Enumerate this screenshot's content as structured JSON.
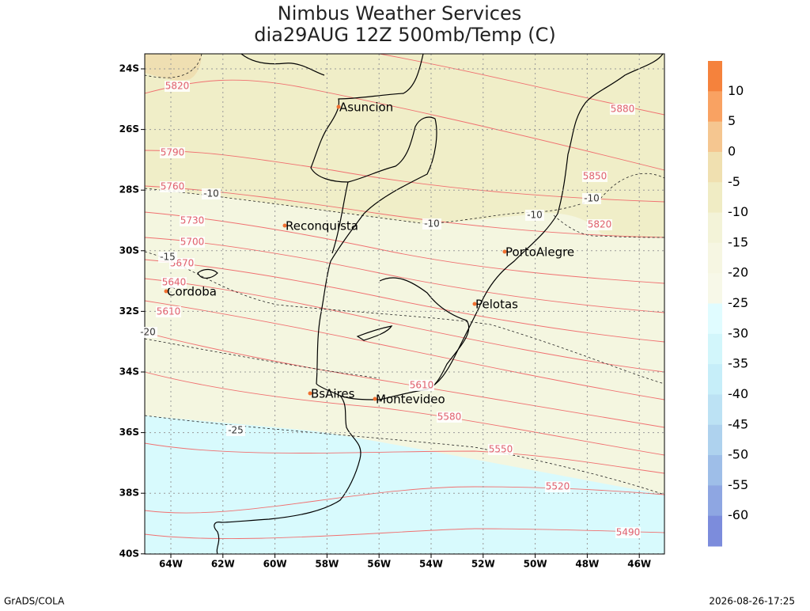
{
  "header": {
    "title": "Nimbus Weather Services",
    "subtitle": "dia29AUG 12Z 500mb/Temp (C)"
  },
  "map": {
    "lat_labels": [
      "24S",
      "26S",
      "28S",
      "30S",
      "32S",
      "34S",
      "36S",
      "38S",
      "40S"
    ],
    "lon_labels": [
      "64W",
      "62W",
      "60W",
      "58W",
      "56W",
      "54W",
      "52W",
      "50W",
      "48W",
      "46W"
    ],
    "cities": [
      "Asuncion",
      "Reconquista",
      "PortoAlegre",
      "Pelotas",
      "Cordoba",
      "BsAires",
      "Montevideo"
    ],
    "height_labels": [
      "5820",
      "5790",
      "5760",
      "5730",
      "5700",
      "5670",
      "5640",
      "5610",
      "5880",
      "5850",
      "5820",
      "5610",
      "5580",
      "5550",
      "5520",
      "5490"
    ],
    "temp_labels": [
      "-10",
      "-10",
      "-10",
      "-10",
      "-15",
      "-20",
      "-25"
    ]
  },
  "colorbar": {
    "labels": [
      10,
      5,
      0,
      -5,
      -10,
      -15,
      -20,
      -25,
      -30,
      -35,
      -40,
      -45,
      -50,
      -55,
      -60
    ]
  },
  "footer": {
    "left": "GrADS/COLA",
    "right": "2026-08-26-17:25"
  }
}
